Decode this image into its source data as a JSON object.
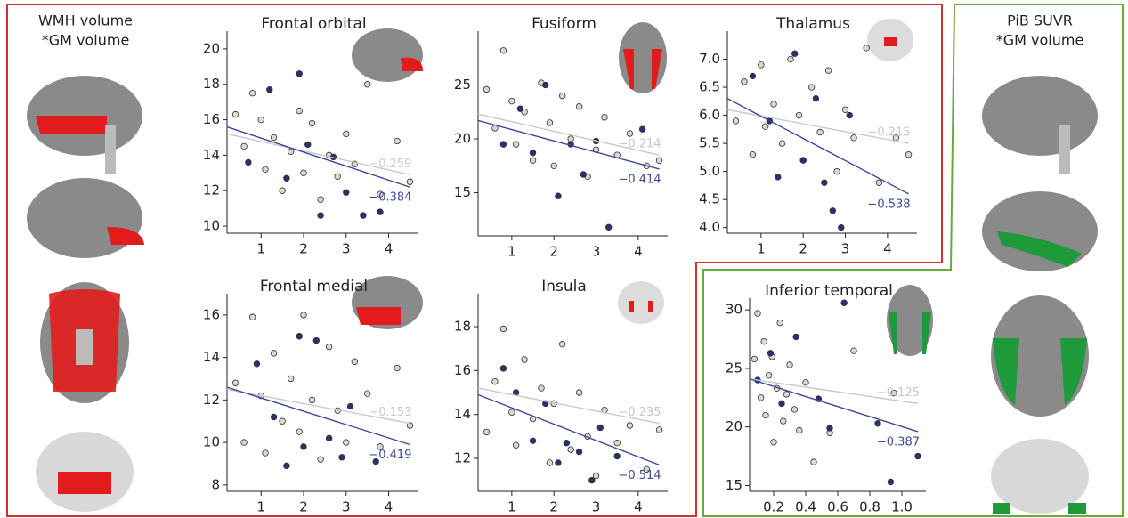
{
  "side_labels": {
    "left": [
      "WMH volume",
      "*GM volume"
    ],
    "right": [
      "PiB SUVR",
      "*GM volume"
    ]
  },
  "chart_data": [
    {
      "type": "scatter",
      "title": "Frontal orbital",
      "xlim": [
        0.2,
        4.7
      ],
      "ylim": [
        9.6,
        21
      ],
      "xticks": [
        1,
        2,
        3,
        4
      ],
      "yticks": [
        10,
        12,
        14,
        16,
        18,
        20
      ],
      "series": [
        {
          "color": "#d9d9cf",
          "x": [
            0.4,
            0.6,
            0.8,
            1.0,
            1.1,
            1.3,
            1.5,
            1.7,
            1.9,
            2.0,
            2.2,
            2.4,
            2.6,
            2.8,
            3.0,
            3.2,
            3.5,
            3.8,
            4.2,
            4.5
          ],
          "values": [
            16.3,
            14.5,
            17.5,
            16.0,
            13.2,
            15.0,
            12.0,
            14.2,
            16.5,
            13.0,
            15.8,
            11.5,
            14.0,
            12.8,
            15.2,
            13.5,
            18.0,
            11.8,
            14.8,
            12.5
          ]
        },
        {
          "color": "#27336e",
          "x": [
            0.7,
            1.2,
            1.6,
            1.9,
            2.1,
            2.4,
            2.7,
            3.0,
            3.4,
            3.8
          ],
          "values": [
            13.6,
            17.7,
            12.7,
            18.6,
            14.6,
            10.6,
            13.9,
            11.9,
            10.6,
            10.8
          ]
        }
      ],
      "lines": [
        {
          "color": "#c8c8c8",
          "x": [
            0.2,
            4.5
          ],
          "y": [
            15.2,
            12.9
          ],
          "value": -0.259,
          "value_label": "−0.259"
        },
        {
          "color": "#3a4a9a",
          "x": [
            0.2,
            4.5
          ],
          "y": [
            15.6,
            12.2
          ],
          "value": -0.384,
          "value_label": "−0.384"
        }
      ]
    },
    {
      "type": "scatter",
      "title": "Fusiform",
      "xlim": [
        0.2,
        4.7
      ],
      "ylim": [
        11,
        30
      ],
      "xticks": [
        1,
        2,
        3,
        4
      ],
      "yticks": [
        15,
        20,
        25
      ],
      "series": [
        {
          "color": "#d9d9cf",
          "x": [
            0.4,
            0.6,
            0.8,
            1.0,
            1.1,
            1.3,
            1.5,
            1.7,
            1.9,
            2.0,
            2.2,
            2.4,
            2.6,
            2.8,
            3.0,
            3.2,
            3.5,
            3.8,
            4.2,
            4.5
          ],
          "values": [
            24.6,
            21.0,
            28.2,
            23.5,
            19.5,
            22.5,
            18.0,
            25.2,
            21.5,
            17.5,
            24.0,
            20.0,
            23.0,
            16.5,
            19.0,
            22.0,
            18.5,
            20.5,
            17.5,
            18.0
          ]
        },
        {
          "color": "#27336e",
          "x": [
            0.8,
            1.2,
            1.5,
            1.8,
            2.1,
            2.4,
            2.7,
            3.0,
            3.3,
            4.1
          ],
          "values": [
            19.5,
            22.8,
            18.7,
            25.0,
            14.7,
            19.5,
            16.7,
            19.8,
            11.8,
            20.9
          ]
        }
      ],
      "lines": [
        {
          "color": "#c8c8c8",
          "x": [
            0.2,
            4.5
          ],
          "y": [
            22.3,
            18.5
          ],
          "value": -0.214,
          "value_label": "−0.214"
        },
        {
          "color": "#3a4a9a",
          "x": [
            0.2,
            4.5
          ],
          "y": [
            21.7,
            17.2
          ],
          "value": -0.414,
          "value_label": "−0.414"
        }
      ]
    },
    {
      "type": "scatter",
      "title": "Thalamus",
      "xlim": [
        0.2,
        4.7
      ],
      "ylim": [
        3.9,
        7.5
      ],
      "xticks": [
        1,
        2,
        3,
        4
      ],
      "yticks": [
        {
          "value": 4,
          "label": "4.0"
        },
        4.5,
        {
          "value": 5,
          "label": "5.0"
        },
        5.5,
        {
          "value": 6,
          "label": "6.0"
        },
        6.5,
        {
          "value": 7,
          "label": "7.0"
        }
      ],
      "series": [
        {
          "color": "#d9d9cf",
          "x": [
            0.4,
            0.6,
            0.8,
            1.0,
            1.1,
            1.3,
            1.5,
            1.7,
            1.9,
            2.0,
            2.2,
            2.4,
            2.6,
            2.8,
            3.0,
            3.2,
            3.5,
            3.8,
            4.2,
            4.5
          ],
          "values": [
            5.9,
            6.6,
            5.3,
            6.9,
            5.8,
            6.2,
            5.5,
            7.0,
            6.0,
            5.2,
            6.5,
            5.7,
            6.8,
            5.0,
            6.1,
            5.6,
            7.2,
            4.8,
            5.6,
            5.3
          ]
        },
        {
          "color": "#27336e",
          "x": [
            0.8,
            1.2,
            1.4,
            1.8,
            2.0,
            2.3,
            2.5,
            2.7,
            2.9,
            3.1
          ],
          "values": [
            6.7,
            5.9,
            4.9,
            7.1,
            5.2,
            6.3,
            4.8,
            4.3,
            4.0,
            6.0
          ]
        }
      ],
      "lines": [
        {
          "color": "#c8c8c8",
          "x": [
            0.2,
            4.5
          ],
          "y": [
            6.1,
            5.5
          ],
          "value": -0.215,
          "value_label": "−0.215"
        },
        {
          "color": "#3a4a9a",
          "x": [
            0.2,
            4.5
          ],
          "y": [
            6.3,
            4.6
          ],
          "value": -0.538,
          "value_label": "−0.538"
        }
      ]
    },
    {
      "type": "scatter",
      "title": "Frontal medial",
      "xlim": [
        0.2,
        4.7
      ],
      "ylim": [
        7.7,
        17
      ],
      "xticks": [
        1,
        2,
        3,
        4
      ],
      "yticks": [
        8,
        10,
        12,
        14,
        16
      ],
      "series": [
        {
          "color": "#d9d9cf",
          "x": [
            0.4,
            0.6,
            0.8,
            1.0,
            1.1,
            1.3,
            1.5,
            1.7,
            1.9,
            2.0,
            2.2,
            2.4,
            2.6,
            2.8,
            3.0,
            3.2,
            3.5,
            3.8,
            4.2,
            4.5
          ],
          "values": [
            12.8,
            10.0,
            15.9,
            12.2,
            9.5,
            14.2,
            11.0,
            13.0,
            10.5,
            16.0,
            12.0,
            9.2,
            14.5,
            11.5,
            10.0,
            13.8,
            12.3,
            9.8,
            13.5,
            10.8
          ]
        },
        {
          "color": "#27336e",
          "x": [
            0.9,
            1.3,
            1.6,
            1.9,
            2.0,
            2.3,
            2.6,
            2.9,
            3.1,
            3.7
          ],
          "values": [
            13.7,
            11.2,
            8.9,
            15.0,
            9.8,
            14.8,
            10.2,
            9.3,
            11.7,
            9.1
          ]
        }
      ],
      "lines": [
        {
          "color": "#c8c8c8",
          "x": [
            0.2,
            4.5
          ],
          "y": [
            12.5,
            10.9
          ],
          "value": -0.153,
          "value_label": "−0.153"
        },
        {
          "color": "#3a4a9a",
          "x": [
            0.2,
            4.5
          ],
          "y": [
            12.6,
            9.9
          ],
          "value": -0.419,
          "value_label": "−0.419"
        }
      ]
    },
    {
      "type": "scatter",
      "title": "Insula",
      "xlim": [
        0.2,
        4.7
      ],
      "ylim": [
        10.5,
        19.5
      ],
      "xticks": [
        1,
        2,
        3,
        4
      ],
      "yticks": [
        12,
        14,
        16,
        18
      ],
      "series": [
        {
          "color": "#d9d9cf",
          "x": [
            0.4,
            0.6,
            0.8,
            1.0,
            1.1,
            1.3,
            1.5,
            1.7,
            1.9,
            2.0,
            2.2,
            2.4,
            2.6,
            2.8,
            3.0,
            3.2,
            3.5,
            3.8,
            4.2,
            4.5
          ],
          "values": [
            13.2,
            15.5,
            17.9,
            14.1,
            12.6,
            16.5,
            13.8,
            15.2,
            11.8,
            14.5,
            17.2,
            12.4,
            15.0,
            13.0,
            11.2,
            14.2,
            12.7,
            13.5,
            11.5,
            13.3
          ]
        },
        {
          "color": "#27336e",
          "x": [
            0.8,
            1.1,
            1.5,
            1.8,
            2.1,
            2.3,
            2.6,
            2.9,
            3.1,
            3.5
          ],
          "values": [
            16.1,
            15.0,
            12.8,
            14.5,
            11.8,
            12.7,
            12.3,
            11.0,
            13.4,
            12.1
          ]
        }
      ],
      "lines": [
        {
          "color": "#c8c8c8",
          "x": [
            0.2,
            4.5
          ],
          "y": [
            15.2,
            13.6
          ],
          "value": -0.235,
          "value_label": "−0.235"
        },
        {
          "color": "#3a4a9a",
          "x": [
            0.2,
            4.5
          ],
          "y": [
            14.9,
            11.7
          ],
          "value": -0.514,
          "value_label": "−0.514"
        }
      ]
    },
    {
      "type": "scatter",
      "title": "Inferior temporal",
      "xlim": [
        0.05,
        1.15
      ],
      "ylim": [
        14.5,
        31
      ],
      "xticks": [
        0.2,
        0.4,
        0.6,
        0.8,
        {
          "value": 1,
          "label": "1.0"
        }
      ],
      "yticks": [
        15,
        20,
        25,
        30
      ],
      "series": [
        {
          "color": "#d9d9cf",
          "x": [
            0.08,
            0.1,
            0.12,
            0.14,
            0.15,
            0.17,
            0.19,
            0.2,
            0.22,
            0.24,
            0.26,
            0.28,
            0.3,
            0.33,
            0.36,
            0.4,
            0.45,
            0.55,
            0.7,
            0.95
          ],
          "values": [
            25.8,
            29.7,
            22.5,
            27.3,
            21.0,
            24.4,
            26.0,
            18.7,
            23.3,
            28.9,
            20.5,
            22.8,
            25.3,
            21.5,
            19.7,
            23.8,
            17.0,
            19.5,
            26.5,
            22.9
          ]
        },
        {
          "color": "#27336e",
          "x": [
            0.1,
            0.18,
            0.25,
            0.34,
            0.48,
            0.55,
            0.64,
            0.85,
            0.93,
            1.1
          ],
          "values": [
            24.0,
            26.3,
            22.0,
            27.7,
            22.4,
            19.9,
            30.6,
            20.3,
            15.3,
            17.5
          ]
        }
      ],
      "lines": [
        {
          "color": "#c8c8c8",
          "x": [
            0.05,
            1.1
          ],
          "y": [
            24.1,
            22.0
          ],
          "value": -0.125,
          "value_label": "−0.125"
        },
        {
          "color": "#3a4a9a",
          "x": [
            0.05,
            1.1
          ],
          "y": [
            24.1,
            19.6
          ],
          "value": -0.387,
          "value_label": "−0.387"
        }
      ]
    }
  ]
}
